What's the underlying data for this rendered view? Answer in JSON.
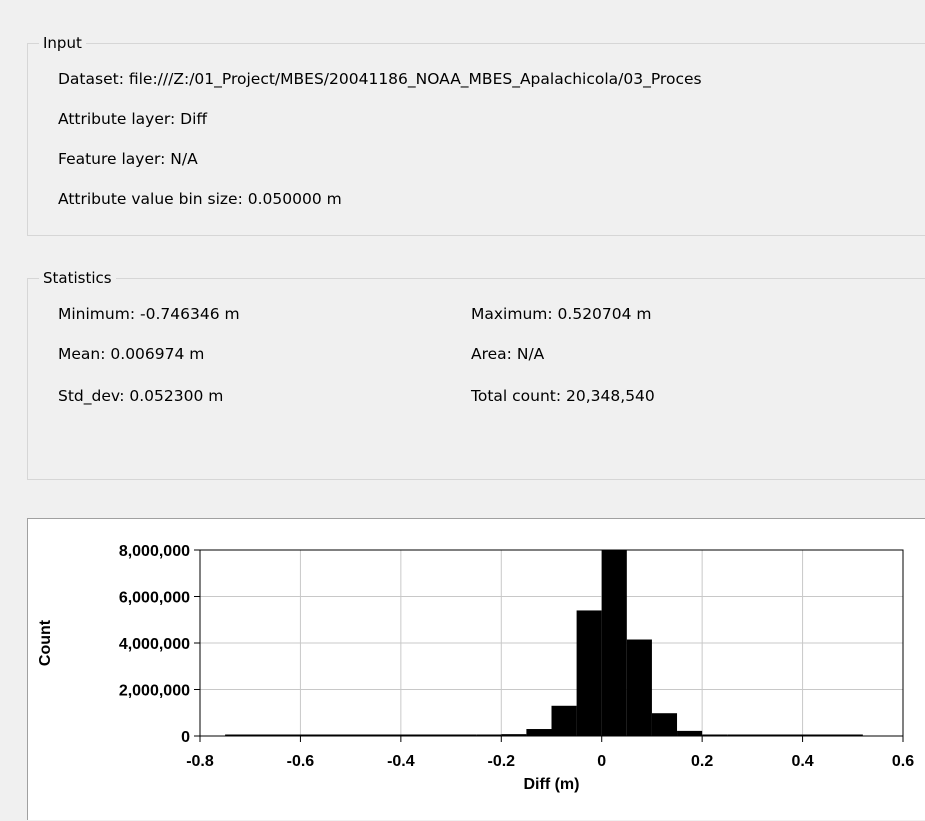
{
  "input": {
    "title": "Input",
    "dataset_label": "Dataset:",
    "dataset_value": "file:///Z:/01_Project/MBES/20041186_NOAA_MBES_Apalachicola/03_Proces",
    "attribute_layer_label": "Attribute layer:",
    "attribute_layer_value": "Diff",
    "feature_layer_label": "Feature layer:",
    "feature_layer_value": "N/A",
    "bin_size_label": "Attribute value bin size:",
    "bin_size_value": "0.050000 m"
  },
  "statistics": {
    "title": "Statistics",
    "minimum_label": "Minimum:",
    "minimum_value": "-0.746346 m",
    "mean_label": "Mean:",
    "mean_value": "0.006974 m",
    "std_dev_label": "Std_dev:",
    "std_dev_value": "0.052300 m",
    "maximum_label": "Maximum:",
    "maximum_value": "0.520704 m",
    "area_label": "Area:",
    "area_value": "N/A",
    "total_count_label": "Total count:",
    "total_count_value": "20,348,540"
  },
  "chart_data": {
    "type": "bar",
    "xlabel": "Diff (m)",
    "ylabel": "Count",
    "xlim": [
      -0.8,
      0.6
    ],
    "ylim": [
      0,
      8000000
    ],
    "grid": true,
    "bar_color": "#000000",
    "x_ticks": [
      -0.8,
      -0.6,
      -0.4,
      -0.2,
      0,
      0.2,
      0.4,
      0.6
    ],
    "x_tick_labels": [
      "-0.8",
      "-0.6",
      "-0.4",
      "-0.2",
      "0",
      "0.2",
      "0.4",
      "0.6"
    ],
    "y_ticks": [
      0,
      2000000,
      4000000,
      6000000,
      8000000
    ],
    "y_tick_labels": [
      "0",
      "2,000,000",
      "4,000,000",
      "6,000,000",
      "8,000,000"
    ],
    "bins": [
      {
        "x0": -0.75,
        "x1": -0.25,
        "count": 20000
      },
      {
        "x0": -0.25,
        "x1": -0.2,
        "count": 30000
      },
      {
        "x0": -0.2,
        "x1": -0.15,
        "count": 80000
      },
      {
        "x0": -0.15,
        "x1": -0.1,
        "count": 300000
      },
      {
        "x0": -0.1,
        "x1": -0.05,
        "count": 1300000
      },
      {
        "x0": -0.05,
        "x1": 0.0,
        "count": 5400000
      },
      {
        "x0": 0.0,
        "x1": 0.05,
        "count": 8000000
      },
      {
        "x0": 0.05,
        "x1": 0.1,
        "count": 4150000
      },
      {
        "x0": 0.1,
        "x1": 0.15,
        "count": 980000
      },
      {
        "x0": 0.15,
        "x1": 0.2,
        "count": 220000
      },
      {
        "x0": 0.2,
        "x1": 0.25,
        "count": 60000
      },
      {
        "x0": 0.25,
        "x1": 0.52,
        "count": 20000
      }
    ]
  }
}
